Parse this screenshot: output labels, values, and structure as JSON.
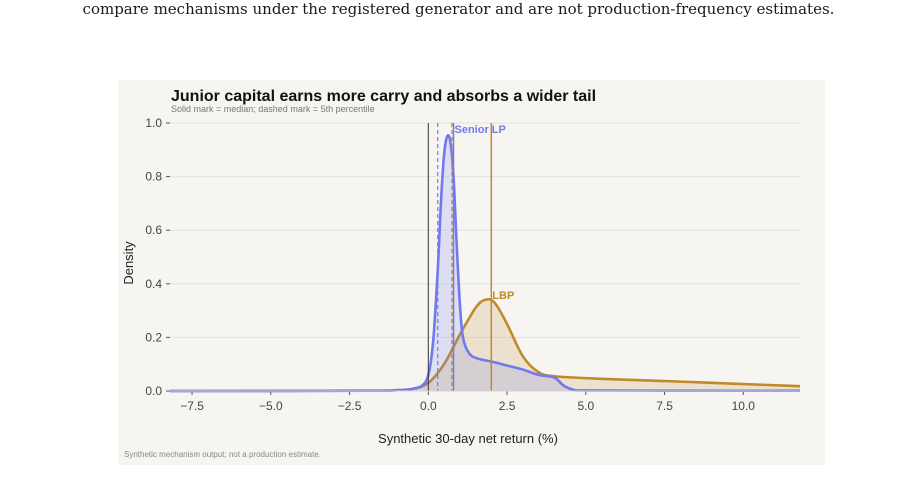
{
  "header_text": "compare mechanisms under the registered generator and are not production-frequency estimates.",
  "caption": "Synthetic mechanism output; not a production estimate.",
  "colors": {
    "senior": "#7179ee",
    "lbp": "#c08a2b",
    "background": "#f6f5f2",
    "zero_line": "#333333"
  },
  "chart_data": {
    "type": "area",
    "title": "Junior capital earns more carry and absorbs a wider tail",
    "subtitle": "Solid mark = median; dashed mark = 5th percentile",
    "xlabel": "Synthetic 30-day net return (%)",
    "ylabel": "Density",
    "xlim": [
      -8.2,
      11.8
    ],
    "ylim": [
      0,
      1.0
    ],
    "xticks": [
      -7.5,
      -5.0,
      -2.5,
      0.0,
      2.5,
      5.0,
      7.5,
      10.0
    ],
    "xtick_labels": [
      "−7.5",
      "−5.0",
      "−2.5",
      "0.0",
      "2.5",
      "5.0",
      "7.5",
      "10.0"
    ],
    "yticks": [
      0.0,
      0.2,
      0.4,
      0.6,
      0.8,
      1.0
    ],
    "ytick_labels": [
      "0.0",
      "0.2",
      "0.4",
      "0.6",
      "0.8",
      "1.0"
    ],
    "grid": true,
    "zero_line": 0,
    "series": [
      {
        "name": "Senior LP",
        "color": "#7179ee",
        "median": 0.8,
        "p5": 0.3,
        "x": [
          -8.2,
          -2.0,
          -1.0,
          -0.5,
          -0.2,
          0.0,
          0.15,
          0.3,
          0.4,
          0.5,
          0.6,
          0.7,
          0.8,
          0.9,
          1.0,
          1.1,
          1.3,
          1.6,
          2.0,
          2.5,
          3.0,
          3.5,
          4.0,
          4.3,
          4.6,
          5.0,
          8.0,
          11.8
        ],
        "y": [
          0.0,
          0.001,
          0.003,
          0.008,
          0.02,
          0.06,
          0.18,
          0.45,
          0.7,
          0.88,
          0.95,
          0.93,
          0.8,
          0.55,
          0.33,
          0.2,
          0.14,
          0.12,
          0.11,
          0.095,
          0.08,
          0.06,
          0.05,
          0.02,
          0.005,
          0.002,
          0.001,
          0.001
        ]
      },
      {
        "name": "LBP",
        "color": "#c08a2b",
        "median": 2.0,
        "p5": 0.75,
        "x": [
          -8.2,
          -2.0,
          -1.0,
          -0.5,
          0.0,
          0.5,
          1.0,
          1.5,
          1.8,
          2.1,
          2.5,
          3.0,
          3.5,
          4.0,
          5.0,
          6.0,
          8.0,
          10.0,
          11.8
        ],
        "y": [
          0.0,
          0.001,
          0.003,
          0.008,
          0.03,
          0.1,
          0.21,
          0.31,
          0.34,
          0.33,
          0.25,
          0.13,
          0.07,
          0.055,
          0.048,
          0.043,
          0.035,
          0.026,
          0.018
        ]
      }
    ],
    "labels": [
      "Senior LP",
      "LBP"
    ]
  }
}
